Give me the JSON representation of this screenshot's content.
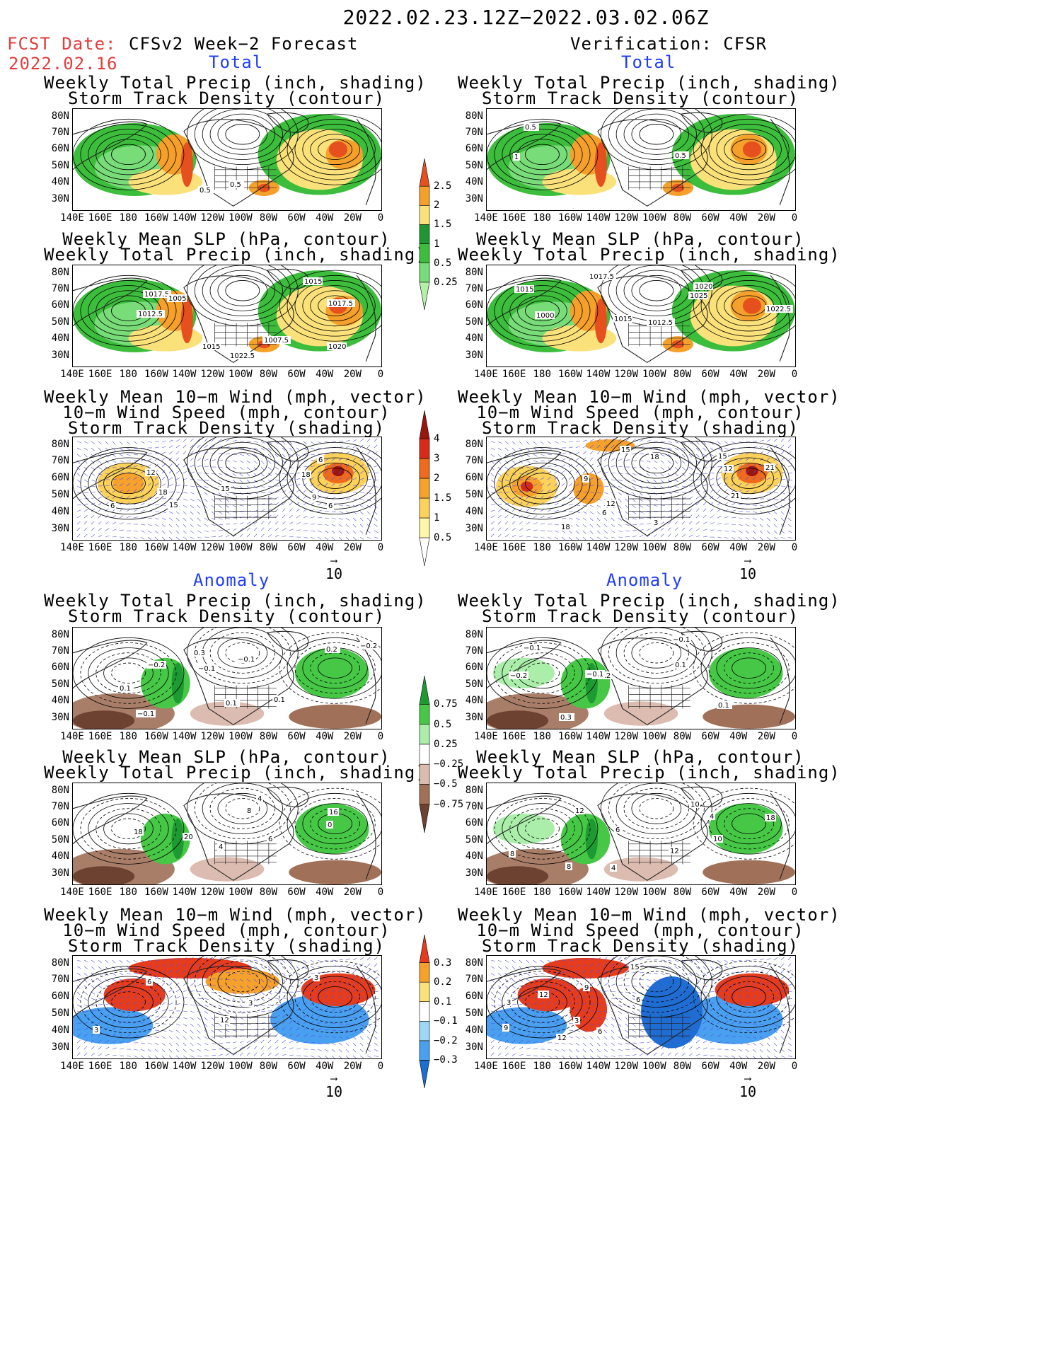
{
  "header": {
    "date_range": "2022.02.23.12Z−2022.03.02.06Z",
    "fcst_label": "FCST Date:",
    "fcst_date": "2022.02.16",
    "left_title": "CFSv2 Week−2 Forecast",
    "right_title": "Verification: CFSR",
    "total_label": "Total",
    "anomaly_label": "Anomaly"
  },
  "panel_titles": {
    "precip": [
      "Weekly Total Precip (inch, shading)",
      "Storm Track Density (contour)"
    ],
    "slp": [
      "Weekly Mean SLP (hPa, contour)",
      "Weekly Total Precip (inch, shading)"
    ],
    "wind": [
      "Weekly Mean 10−m Wind (mph, vector)",
      "10−m Wind Speed (mph, contour)",
      "Storm Track Density (shading)"
    ]
  },
  "axes": {
    "lat_labels": [
      "80N",
      "70N",
      "60N",
      "50N",
      "40N",
      "30N"
    ],
    "lon_labels": [
      "140E",
      "160E",
      "180",
      "160W",
      "140W",
      "120W",
      "100W",
      "80W",
      "60W",
      "40W",
      "20W",
      "0"
    ]
  },
  "vector_key": "10",
  "colorbars": {
    "total_precip": {
      "levels": [
        "0.25",
        "0.5",
        "1",
        "1.5",
        "2",
        "2.5"
      ],
      "colors": [
        "#b4f0a8",
        "#78dc78",
        "#3cbe3c",
        "#1e9632",
        "#fae17a",
        "#f5a02a",
        "#e6501e"
      ]
    },
    "total_density": {
      "levels": [
        "0.5",
        "1",
        "1.5",
        "2",
        "3",
        "4"
      ],
      "colors": [
        "#ffffff",
        "#fff7a8",
        "#fcd25a",
        "#f7a12d",
        "#ef6a1c",
        "#d92a18",
        "#9b1510"
      ]
    },
    "anom_precip": {
      "levels": [
        "−0.75",
        "−0.5",
        "−0.25",
        "0.25",
        "0.5",
        "0.75"
      ],
      "colors": [
        "#6e4230",
        "#a07058",
        "#dcbcb0",
        "#ffffff",
        "#aaeeaa",
        "#46c846",
        "#1e9a32"
      ]
    },
    "anom_density": {
      "levels": [
        "−0.3",
        "−0.2",
        "−0.1",
        "0.1",
        "0.2",
        "0.3"
      ],
      "colors": [
        "#1e6ed2",
        "#4aa0f0",
        "#9ed6f6",
        "#ffffff",
        "#fce07a",
        "#f7a12d",
        "#e63c1e"
      ]
    }
  },
  "contour_labels": {
    "fc_precip_total": [
      "0.5",
      "0.5"
    ],
    "ob_precip_total": [
      "0.5",
      "1",
      "0.5"
    ],
    "fc_slp_total": [
      "1007.5",
      "1012.5",
      "1017.5",
      "1015",
      "1020",
      "1017.5",
      "1005",
      "1015",
      "1022.5"
    ],
    "ob_slp_total": [
      "1017.5",
      "1020",
      "1022.5",
      "1015",
      "1012.5",
      "1000",
      "1015",
      "1025"
    ],
    "fc_wind_total": [
      "6",
      "6",
      "12",
      "9",
      "18",
      "15",
      "6",
      "15",
      "18"
    ],
    "ob_wind_total": [
      "3",
      "6",
      "9",
      "12",
      "15",
      "18",
      "21",
      "12",
      "15",
      "21",
      "18"
    ],
    "fc_precip_anom": [
      "0.1",
      "0.1",
      "−0.1",
      "−0.2",
      "0.1",
      "0.3",
      "0.2",
      "−0.1",
      "−0.2",
      "−0.1"
    ],
    "ob_precip_anom": [
      "0.1",
      "−0.2",
      "0.1",
      "0.3",
      "−0.2",
      "−0.1",
      "−0.1",
      "−0.1"
    ],
    "fc_slp_anom": [
      "20",
      "18",
      "16",
      "4",
      "8",
      "4",
      "6",
      "0"
    ],
    "ob_slp_anom": [
      "8",
      "10",
      "18",
      "12",
      "8",
      "4",
      "6",
      "10",
      "12",
      "4"
    ],
    "fc_wind_anom": [
      "3",
      "3",
      "6",
      "3",
      "12"
    ],
    "ob_wind_anom": [
      "3",
      "6",
      "9",
      "3",
      "12",
      "6",
      "12",
      "15",
      "9"
    ]
  }
}
